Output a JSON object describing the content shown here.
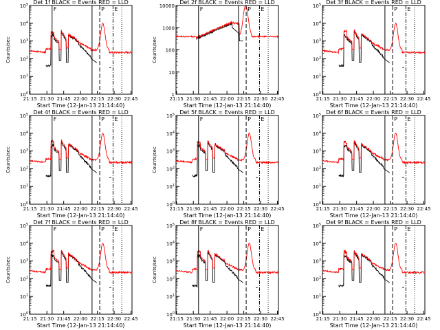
{
  "colors": {
    "background": "#ffffff",
    "axis": "#000000",
    "black_trace": "#000000",
    "red_trace": "#ff0000"
  },
  "chart_data": [
    {
      "type": "line",
      "title": "Det 1f BLACK = Events RED = LLD",
      "xlabel": "Start Time (12-Jan-13 21:14:40)",
      "ylabel": "Counts/sec",
      "scale": "log",
      "ylim": [
        1,
        100000
      ],
      "x_ticks": [
        "21:15",
        "21:30",
        "21:45",
        "22:00",
        "22:15",
        "22:30",
        "22:45"
      ],
      "y_ticks": [
        "10^0",
        "10^1",
        "10^2",
        "10^3",
        "10^4",
        "10^5"
      ],
      "markers": [
        {
          "label": "F",
          "style": "solid"
        },
        {
          "label": "",
          "style": "solid"
        },
        {
          "label": "P",
          "style": "dashed"
        },
        {
          "label": "E",
          "style": "dashdot"
        },
        {
          "label": "",
          "style": "dotted"
        }
      ],
      "series": [
        {
          "name": "Events",
          "color": "#000000"
        },
        {
          "name": "LLD",
          "color": "#ff0000"
        }
      ],
      "profile": "flare"
    },
    {
      "type": "line",
      "title": "Det 2f BLACK = Events RED = LLD",
      "xlabel": "Start Time (12-Jan-13 21:14:40)",
      "ylabel": "Counts/sec",
      "scale": "log",
      "ylim": [
        1,
        10000
      ],
      "x_ticks": [
        "21:15",
        "21:30",
        "21:45",
        "22:00",
        "22:15",
        "22:30",
        "22:45"
      ],
      "y_ticks": [
        "1",
        "10",
        "100",
        "1000",
        "10000"
      ],
      "markers": [
        {
          "label": "F",
          "style": "solid"
        },
        {
          "label": "",
          "style": "solid"
        },
        {
          "label": "P",
          "style": "dashed"
        },
        {
          "label": "E",
          "style": "dashdot"
        },
        {
          "label": "",
          "style": "dotted"
        }
      ],
      "series": [
        {
          "name": "Events",
          "color": "#000000"
        },
        {
          "name": "LLD",
          "color": "#ff0000"
        }
      ],
      "profile": "det2"
    },
    {
      "type": "line",
      "title": "Det 3f BLACK = Events RED = LLD",
      "xlabel": "Start Time (12-Jan-13 21:14:40)",
      "ylabel": "",
      "scale": "log",
      "ylim": [
        1,
        100000
      ],
      "x_ticks": [
        "21:15",
        "21:30",
        "21:45",
        "22:00",
        "22:15",
        "22:30",
        "22:45"
      ],
      "y_ticks": [
        "10^0",
        "10^1",
        "10^2",
        "10^3",
        "10^4",
        "10^5"
      ],
      "markers": [
        {
          "label": "",
          "style": "solid"
        },
        {
          "label": "P",
          "style": "dashed"
        },
        {
          "label": "E",
          "style": "dashdot"
        },
        {
          "label": "",
          "style": "dotted"
        }
      ],
      "series": [
        {
          "name": "Events",
          "color": "#000000"
        },
        {
          "name": "LLD",
          "color": "#ff0000"
        }
      ],
      "profile": "flare"
    },
    {
      "type": "line",
      "title": "Det 4f BLACK = Events RED = LLD",
      "xlabel": "Start Time (12-Jan-13 21:14:40)",
      "ylabel": "Counts/sec",
      "scale": "log",
      "ylim": [
        1,
        100000
      ],
      "x_ticks": [
        "21:15",
        "21:30",
        "21:45",
        "22:00",
        "22:15",
        "22:30",
        "22:45"
      ],
      "y_ticks": [
        "10^0",
        "10^1",
        "10^2",
        "10^3",
        "10^4",
        "10^5"
      ],
      "markers": [
        {
          "label": "F",
          "style": "solid"
        },
        {
          "label": "",
          "style": "solid"
        },
        {
          "label": "P",
          "style": "dashed"
        },
        {
          "label": "E",
          "style": "dashdot"
        },
        {
          "label": "",
          "style": "dotted"
        }
      ],
      "series": [
        {
          "name": "Events",
          "color": "#000000"
        },
        {
          "name": "LLD",
          "color": "#ff0000"
        }
      ],
      "profile": "flare"
    },
    {
      "type": "line",
      "title": "Det 5f BLACK = Events RED = LLD",
      "xlabel": "Start Time (12-Jan-13 21:14:40)",
      "ylabel": "Counts/sec",
      "scale": "log",
      "ylim": [
        1,
        100000
      ],
      "x_ticks": [
        "21:15",
        "21:30",
        "21:45",
        "22:00",
        "22:15",
        "22:30",
        "22:45"
      ],
      "y_ticks": [
        "10^0",
        "10^1",
        "10^2",
        "10^3",
        "10^4",
        "10^5"
      ],
      "markers": [
        {
          "label": "F",
          "style": "solid"
        },
        {
          "label": "",
          "style": "solid"
        },
        {
          "label": "P",
          "style": "dashed"
        },
        {
          "label": "E",
          "style": "dashdot"
        },
        {
          "label": "",
          "style": "dotted"
        }
      ],
      "series": [
        {
          "name": "Events",
          "color": "#000000"
        },
        {
          "name": "LLD",
          "color": "#ff0000"
        }
      ],
      "profile": "flare"
    },
    {
      "type": "line",
      "title": "Det 6f BLACK = Events RED = LLD",
      "xlabel": "Start Time (12-Jan-13 21:14:40)",
      "ylabel": "",
      "scale": "log",
      "ylim": [
        1,
        100000
      ],
      "x_ticks": [
        "21:15",
        "21:30",
        "21:45",
        "22:00",
        "22:15",
        "22:30",
        "22:45"
      ],
      "y_ticks": [
        "10^0",
        "10^1",
        "10^2",
        "10^3",
        "10^4",
        "10^5"
      ],
      "markers": [
        {
          "label": "",
          "style": "solid"
        },
        {
          "label": "P",
          "style": "dashed"
        },
        {
          "label": "E",
          "style": "dashdot"
        },
        {
          "label": "",
          "style": "dotted"
        }
      ],
      "series": [
        {
          "name": "Events",
          "color": "#000000"
        },
        {
          "name": "LLD",
          "color": "#ff0000"
        }
      ],
      "profile": "flare"
    },
    {
      "type": "line",
      "title": "Det 7f BLACK = Events RED = LLD",
      "xlabel": "Start Time (12-Jan-13 21:14:40)",
      "ylabel": "Counts/sec",
      "scale": "log",
      "ylim": [
        1,
        100000
      ],
      "x_ticks": [
        "21:15",
        "21:30",
        "21:45",
        "22:00",
        "22:15",
        "22:30",
        "22:45"
      ],
      "y_ticks": [
        "10^0",
        "10^1",
        "10^2",
        "10^3",
        "10^4",
        "10^5"
      ],
      "markers": [
        {
          "label": "F",
          "style": "solid"
        },
        {
          "label": "",
          "style": "solid"
        },
        {
          "label": "P",
          "style": "dashed"
        },
        {
          "label": "E",
          "style": "dashdot"
        },
        {
          "label": "",
          "style": "dotted"
        }
      ],
      "series": [
        {
          "name": "Events",
          "color": "#000000"
        },
        {
          "name": "LLD",
          "color": "#ff0000"
        }
      ],
      "profile": "flare"
    },
    {
      "type": "line",
      "title": "Det 8f BLACK = Events RED = LLD",
      "xlabel": "Start Time (12-Jan-13 21:14:40)",
      "ylabel": "Counts/sec",
      "scale": "log",
      "ylim": [
        1,
        100000
      ],
      "x_ticks": [
        "21:15",
        "21:30",
        "21:45",
        "22:00",
        "22:15",
        "22:30",
        "22:45"
      ],
      "y_ticks": [
        "10^0",
        "10^1",
        "10^2",
        "10^3",
        "10^4",
        "10^5"
      ],
      "markers": [
        {
          "label": "F",
          "style": "solid"
        },
        {
          "label": "",
          "style": "solid"
        },
        {
          "label": "P",
          "style": "dashed"
        },
        {
          "label": "E",
          "style": "dashdot"
        },
        {
          "label": "",
          "style": "dotted"
        }
      ],
      "series": [
        {
          "name": "Events",
          "color": "#000000"
        },
        {
          "name": "LLD",
          "color": "#ff0000"
        }
      ],
      "profile": "flare"
    },
    {
      "type": "line",
      "title": "Det 9f BLACK = Events RED = LLD",
      "xlabel": "Start Time (12-Jan-13 21:14:40)",
      "ylabel": "",
      "scale": "log",
      "ylim": [
        1,
        100000
      ],
      "x_ticks": [
        "21:15",
        "21:30",
        "21:45",
        "22:00",
        "22:15",
        "22:30",
        "22:45"
      ],
      "y_ticks": [
        "10^0",
        "10^1",
        "10^2",
        "10^3",
        "10^4",
        "10^5"
      ],
      "markers": [
        {
          "label": "",
          "style": "solid"
        },
        {
          "label": "P",
          "style": "dashed"
        },
        {
          "label": "E",
          "style": "dashdot"
        },
        {
          "label": "",
          "style": "dotted"
        }
      ],
      "series": [
        {
          "name": "Events",
          "color": "#000000"
        },
        {
          "name": "LLD",
          "color": "#ff0000"
        }
      ],
      "profile": "flare"
    }
  ]
}
